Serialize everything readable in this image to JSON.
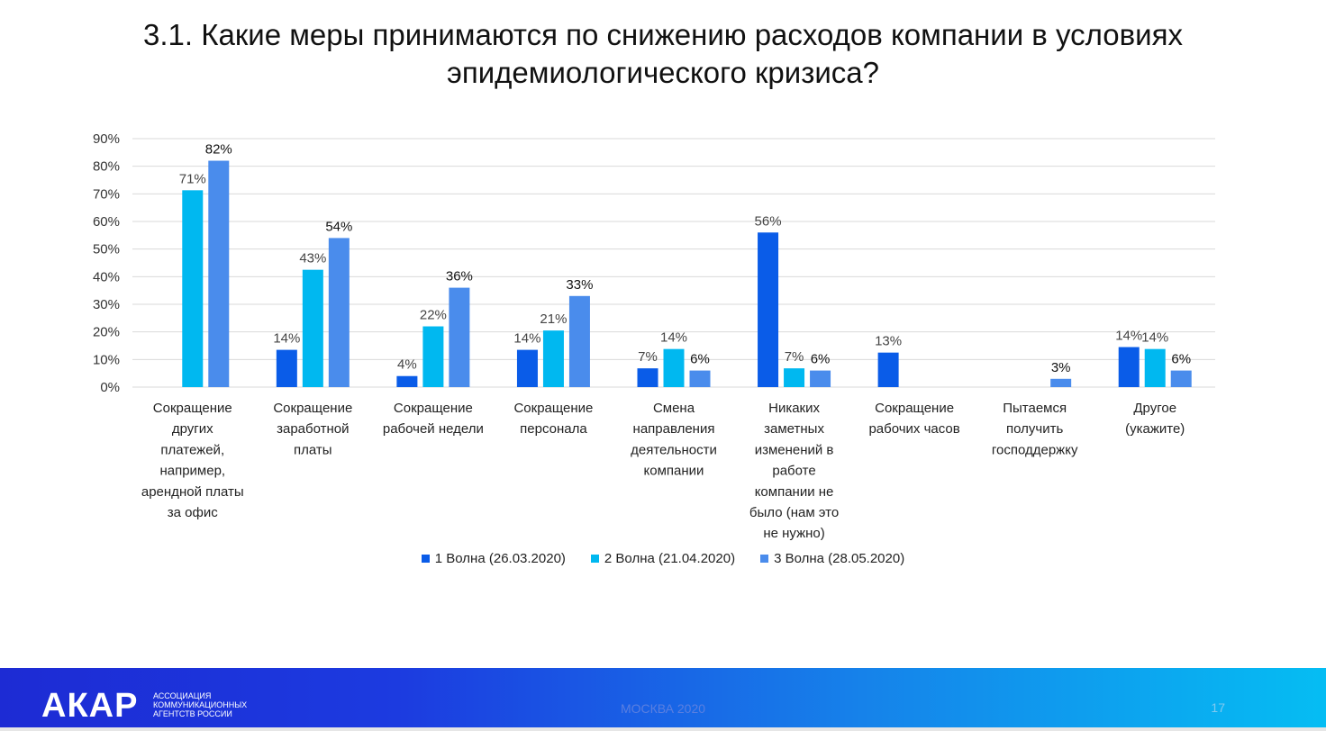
{
  "title_line1": "3.1. Какие меры принимаются по снижению расходов компании в условиях",
  "title_line2": "эпидемиологического кризиса?",
  "footer": {
    "logo": "АКАР",
    "logo_sub": [
      "АССОЦИАЦИЯ",
      "КОММУНИКАЦИОННЫХ",
      "АГЕНТСТВ РОССИИ"
    ],
    "city": "МОСКВА 2020",
    "page": "17"
  },
  "colors": {
    "series": [
      "#0a5ce8",
      "#00b8f0",
      "#4a8cec"
    ],
    "grid": "#d9d9d9",
    "text": "#333333"
  },
  "chart_data": {
    "type": "bar",
    "ylim": [
      0,
      90
    ],
    "yticks": [
      "0%",
      "10%",
      "20%",
      "30%",
      "40%",
      "50%",
      "60%",
      "70%",
      "80%",
      "90%"
    ],
    "grid": true,
    "legend_position": "bottom",
    "categories": [
      [
        "Сокращение",
        "других",
        "платежей,",
        "например,",
        "арендной платы",
        "за офис"
      ],
      [
        "Сокращение",
        "заработной",
        "платы"
      ],
      [
        "Сокращение",
        "рабочей недели"
      ],
      [
        "Сокращение",
        "персонала"
      ],
      [
        "Смена",
        "направления",
        "деятельности",
        "компании"
      ],
      [
        "Никаких",
        "заметных",
        "изменений в",
        "работе",
        "компании не",
        "было (нам это",
        "не нужно)"
      ],
      [
        "Сокращение",
        "рабочих часов"
      ],
      [
        "Пытаемся",
        "получить",
        "господдержку"
      ],
      [
        "Другое",
        "(укажите)"
      ]
    ],
    "series": [
      {
        "name": "1 Волна (26.03.2020)",
        "values": [
          null,
          13.5,
          4,
          13.5,
          6.8,
          56,
          12.5,
          null,
          14.5
        ],
        "labels": [
          "",
          "14%",
          "4%",
          "14%",
          "7%",
          "56%",
          "13%",
          "",
          "14%"
        ]
      },
      {
        "name": "2 Волна (21.04.2020)",
        "values": [
          71.3,
          42.5,
          22,
          20.5,
          13.8,
          6.8,
          null,
          null,
          13.8
        ],
        "labels": [
          "71%",
          "43%",
          "22%",
          "21%",
          "14%",
          "7%",
          "",
          "",
          "14%"
        ]
      },
      {
        "name": "3 Волна (28.05.2020)",
        "values": [
          82,
          54,
          36,
          33,
          6,
          6,
          null,
          3,
          6
        ],
        "labels": [
          "82%",
          "54%",
          "36%",
          "33%",
          "6%",
          "6%",
          "",
          "3%",
          "6%"
        ]
      }
    ]
  }
}
